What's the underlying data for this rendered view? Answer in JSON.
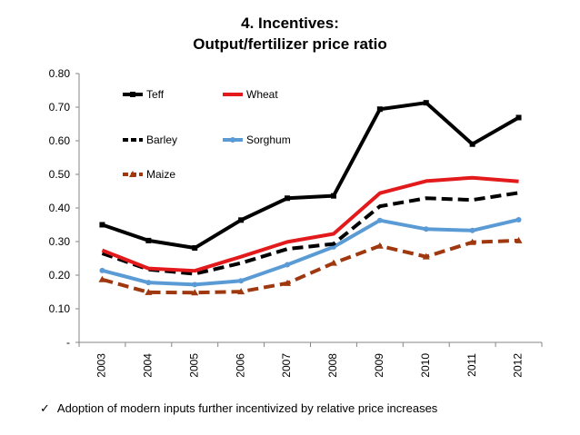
{
  "title_line1": "4. Incentives:",
  "title_line2": "Output/fertilizer price ratio",
  "footnote": {
    "icon": "check-icon",
    "glyph": "✓",
    "text": "Adoption of modern inputs further incentivized by relative price increases"
  },
  "chart_data": {
    "type": "line",
    "title": "4. Incentives: Output/fertilizer price ratio",
    "categories": [
      "2003",
      "2004",
      "2005",
      "2006",
      "2007",
      "2008",
      "2009",
      "2010",
      "2011",
      "2012"
    ],
    "ylim": [
      0,
      0.8
    ],
    "yticks": [
      0,
      0.1,
      0.2,
      0.3,
      0.4,
      0.5,
      0.6,
      0.7,
      0.8
    ],
    "ytick_labels": [
      "-",
      "0.10",
      "0.20",
      "0.30",
      "0.40",
      "0.50",
      "0.60",
      "0.70",
      "0.80"
    ],
    "grid": false,
    "legend": "upper-left-inside",
    "series": [
      {
        "name": "Teff",
        "color": "#000000",
        "dash": "solid",
        "marker": "square",
        "values": [
          0.35,
          0.303,
          0.281,
          0.364,
          0.429,
          0.436,
          0.694,
          0.713,
          0.59,
          0.669
        ]
      },
      {
        "name": "Wheat",
        "color": "#e31a1c",
        "dash": "solid",
        "marker": "none",
        "values": [
          0.274,
          0.22,
          0.213,
          0.255,
          0.299,
          0.323,
          0.444,
          0.48,
          0.49,
          0.479
        ]
      },
      {
        "name": "Barley",
        "color": "#000000",
        "dash": "dashed",
        "marker": "none",
        "values": [
          0.265,
          0.217,
          0.204,
          0.236,
          0.278,
          0.293,
          0.405,
          0.429,
          0.424,
          0.445
        ]
      },
      {
        "name": "Sorghum",
        "color": "#5b9bd5",
        "dash": "solid",
        "marker": "circle",
        "values": [
          0.214,
          0.178,
          0.172,
          0.183,
          0.231,
          0.284,
          0.363,
          0.337,
          0.333,
          0.365
        ]
      },
      {
        "name": "Maize",
        "color": "#a0380f",
        "dash": "dashed",
        "marker": "triangle",
        "values": [
          0.187,
          0.149,
          0.148,
          0.151,
          0.176,
          0.236,
          0.287,
          0.255,
          0.298,
          0.303
        ]
      }
    ]
  }
}
